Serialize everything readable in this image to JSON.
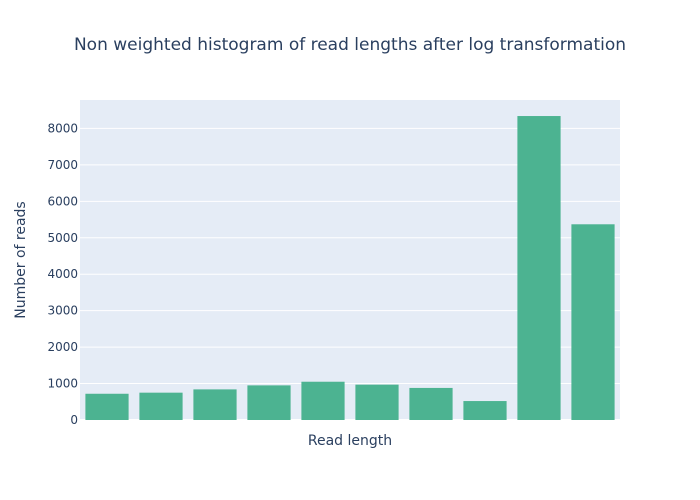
{
  "chart_data": {
    "type": "bar",
    "title": "Non weighted histogram of read lengths after log transformation",
    "xlabel": "Read length",
    "ylabel": "Number of reads",
    "ylim": [
      0,
      8780
    ],
    "yticks": [
      0,
      1000,
      2000,
      3000,
      4000,
      5000,
      6000,
      7000,
      8000
    ],
    "values": [
      720,
      750,
      840,
      950,
      1050,
      970,
      880,
      520,
      8340,
      5370
    ],
    "bar_color": "#4cb391",
    "plot_bg": "#e5ecf6",
    "grid": true,
    "show_x_tick_labels": false
  }
}
